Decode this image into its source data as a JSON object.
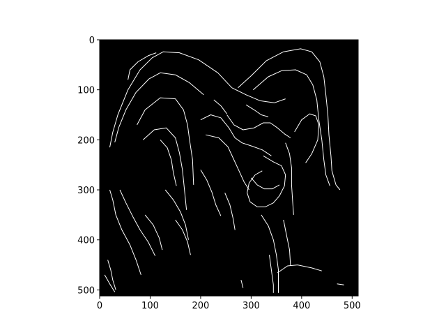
{
  "chart_data": {
    "type": "heatmap",
    "title": "",
    "xlabel": "",
    "ylabel": "",
    "xlim": [
      0,
      512
    ],
    "ylim": [
      512,
      0
    ],
    "x_ticks": [
      0,
      100,
      200,
      300,
      400,
      500
    ],
    "y_ticks": [
      0,
      100,
      200,
      300,
      400,
      500
    ],
    "x_tick_labels": [
      "0",
      "100",
      "200",
      "300",
      "400",
      "500"
    ],
    "y_tick_labels": [
      "0",
      "100",
      "200",
      "300",
      "400",
      "500"
    ],
    "image_description": "edge map of a bighorn ram head",
    "colors": {
      "background": "#000000",
      "edges": "#ffffff",
      "axes": "#000000"
    },
    "edge_paths": [
      [
        [
          20,
          215
        ],
        [
          26,
          185
        ],
        [
          36,
          150
        ],
        [
          56,
          100
        ],
        [
          80,
          60
        ],
        [
          104,
          36
        ],
        [
          126,
          24
        ],
        [
          158,
          26
        ],
        [
          196,
          40
        ],
        [
          234,
          66
        ],
        [
          262,
          96
        ]
      ],
      [
        [
          30,
          205
        ],
        [
          38,
          175
        ],
        [
          52,
          140
        ],
        [
          72,
          105
        ],
        [
          98,
          78
        ],
        [
          120,
          66
        ],
        [
          150,
          70
        ],
        [
          178,
          86
        ],
        [
          206,
          110
        ]
      ],
      [
        [
          262,
          96
        ],
        [
          290,
          110
        ],
        [
          318,
          122
        ],
        [
          346,
          126
        ],
        [
          368,
          118
        ]
      ],
      [
        [
          274,
          96
        ],
        [
          300,
          72
        ],
        [
          330,
          42
        ],
        [
          364,
          24
        ],
        [
          398,
          18
        ],
        [
          420,
          24
        ],
        [
          436,
          44
        ],
        [
          444,
          74
        ],
        [
          448,
          110
        ],
        [
          452,
          150
        ],
        [
          454,
          190
        ],
        [
          458,
          232
        ],
        [
          460,
          262
        ],
        [
          468,
          290
        ],
        [
          476,
          300
        ]
      ],
      [
        [
          304,
          100
        ],
        [
          334,
          74
        ],
        [
          360,
          62
        ],
        [
          388,
          60
        ],
        [
          410,
          70
        ],
        [
          422,
          90
        ],
        [
          430,
          120
        ],
        [
          434,
          160
        ],
        [
          440,
          200
        ],
        [
          444,
          240
        ],
        [
          448,
          270
        ],
        [
          456,
          292
        ]
      ],
      [
        [
          56,
          80
        ],
        [
          60,
          60
        ],
        [
          76,
          44
        ],
        [
          96,
          32
        ],
        [
          112,
          26
        ]
      ],
      [
        [
          74,
          170
        ],
        [
          90,
          140
        ],
        [
          120,
          116
        ],
        [
          150,
          118
        ],
        [
          166,
          140
        ],
        [
          174,
          170
        ],
        [
          178,
          200
        ],
        [
          184,
          240
        ],
        [
          186,
          290
        ]
      ],
      [
        [
          86,
          200
        ],
        [
          108,
          180
        ],
        [
          132,
          176
        ],
        [
          150,
          196
        ],
        [
          158,
          226
        ],
        [
          164,
          260
        ],
        [
          168,
          300
        ],
        [
          172,
          340
        ]
      ],
      [
        [
          200,
          160
        ],
        [
          220,
          150
        ],
        [
          240,
          156
        ],
        [
          256,
          176
        ],
        [
          268,
          196
        ],
        [
          282,
          206
        ],
        [
          300,
          212
        ],
        [
          322,
          220
        ],
        [
          340,
          232
        ]
      ],
      [
        [
          210,
          190
        ],
        [
          236,
          196
        ],
        [
          254,
          214
        ],
        [
          266,
          240
        ],
        [
          276,
          262
        ],
        [
          286,
          284
        ],
        [
          296,
          300
        ]
      ],
      [
        [
          252,
          150
        ],
        [
          266,
          170
        ],
        [
          284,
          180
        ],
        [
          306,
          176
        ],
        [
          324,
          166
        ],
        [
          338,
          166
        ],
        [
          352,
          176
        ],
        [
          366,
          188
        ],
        [
          378,
          196
        ]
      ],
      [
        [
          324,
          232
        ],
        [
          344,
          244
        ],
        [
          360,
          252
        ],
        [
          368,
          270
        ],
        [
          366,
          292
        ],
        [
          356,
          312
        ],
        [
          344,
          326
        ],
        [
          328,
          334
        ],
        [
          312,
          334
        ],
        [
          298,
          324
        ],
        [
          292,
          306
        ],
        [
          296,
          286
        ],
        [
          308,
          270
        ],
        [
          322,
          262
        ]
      ],
      [
        [
          300,
          276
        ],
        [
          312,
          290
        ],
        [
          326,
          298
        ],
        [
          342,
          298
        ],
        [
          356,
          290
        ]
      ],
      [
        [
          386,
          184
        ],
        [
          400,
          160
        ],
        [
          416,
          148
        ],
        [
          428,
          152
        ],
        [
          434,
          170
        ],
        [
          432,
          200
        ],
        [
          420,
          228
        ],
        [
          408,
          246
        ]
      ],
      [
        [
          368,
          206
        ],
        [
          376,
          228
        ],
        [
          380,
          256
        ],
        [
          380,
          290
        ],
        [
          382,
          320
        ],
        [
          384,
          350
        ]
      ],
      [
        [
          20,
          300
        ],
        [
          26,
          320
        ],
        [
          32,
          350
        ],
        [
          44,
          380
        ],
        [
          60,
          410
        ],
        [
          72,
          440
        ],
        [
          82,
          470
        ]
      ],
      [
        [
          40,
          300
        ],
        [
          52,
          326
        ],
        [
          66,
          354
        ],
        [
          80,
          380
        ],
        [
          96,
          404
        ],
        [
          110,
          432
        ]
      ],
      [
        [
          130,
          300
        ],
        [
          146,
          320
        ],
        [
          160,
          344
        ],
        [
          170,
          370
        ],
        [
          176,
          400
        ]
      ],
      [
        [
          90,
          350
        ],
        [
          106,
          370
        ],
        [
          118,
          396
        ],
        [
          124,
          420
        ]
      ],
      [
        [
          150,
          360
        ],
        [
          164,
          380
        ],
        [
          174,
          404
        ],
        [
          180,
          430
        ]
      ],
      [
        [
          320,
          350
        ],
        [
          334,
          372
        ],
        [
          344,
          400
        ],
        [
          350,
          430
        ],
        [
          354,
          460
        ],
        [
          354,
          506
        ]
      ],
      [
        [
          336,
          430
        ],
        [
          340,
          460
        ],
        [
          344,
          490
        ],
        [
          344,
          506
        ]
      ],
      [
        [
          364,
          360
        ],
        [
          370,
          390
        ],
        [
          376,
          420
        ],
        [
          378,
          452
        ]
      ],
      [
        [
          352,
          466
        ],
        [
          372,
          452
        ],
        [
          392,
          450
        ],
        [
          420,
          456
        ],
        [
          440,
          462
        ]
      ],
      [
        [
          200,
          260
        ],
        [
          212,
          280
        ],
        [
          222,
          304
        ],
        [
          230,
          330
        ],
        [
          240,
          352
        ]
      ],
      [
        [
          248,
          306
        ],
        [
          258,
          330
        ],
        [
          264,
          356
        ],
        [
          268,
          380
        ]
      ],
      [
        [
          16,
          440
        ],
        [
          22,
          460
        ],
        [
          26,
          480
        ],
        [
          32,
          500
        ]
      ],
      [
        [
          10,
          470
        ],
        [
          20,
          488
        ],
        [
          30,
          504
        ]
      ],
      [
        [
          280,
          480
        ],
        [
          284,
          496
        ]
      ],
      [
        [
          470,
          488
        ],
        [
          484,
          490
        ]
      ],
      [
        [
          120,
          200
        ],
        [
          134,
          216
        ],
        [
          142,
          240
        ],
        [
          146,
          266
        ],
        [
          152,
          292
        ]
      ],
      [
        [
          226,
          120
        ],
        [
          240,
          132
        ],
        [
          252,
          148
        ]
      ],
      [
        [
          290,
          130
        ],
        [
          306,
          140
        ],
        [
          320,
          150
        ],
        [
          334,
          154
        ]
      ]
    ]
  }
}
